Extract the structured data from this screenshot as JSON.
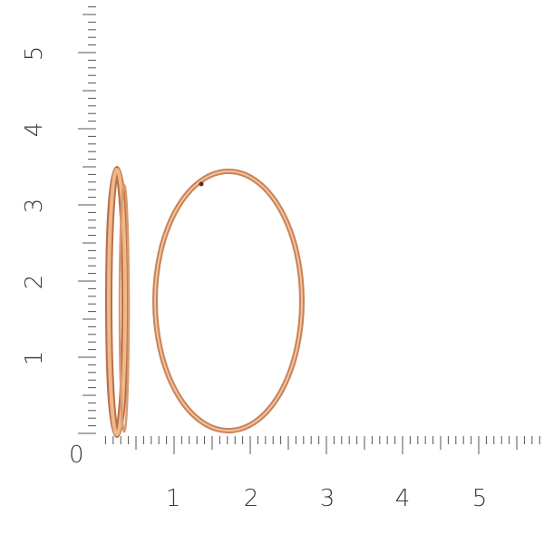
{
  "vertical_ruler": {
    "labels": [
      "0",
      "1",
      "2",
      "3",
      "4",
      "5"
    ]
  },
  "horizontal_ruler": {
    "labels": [
      "1",
      "2",
      "3",
      "4",
      "5"
    ]
  },
  "colors": {
    "gold": "#d99a70",
    "gold_dark": "#b8704a",
    "gold_light": "#f4c9a4",
    "ruler": "#555555"
  }
}
